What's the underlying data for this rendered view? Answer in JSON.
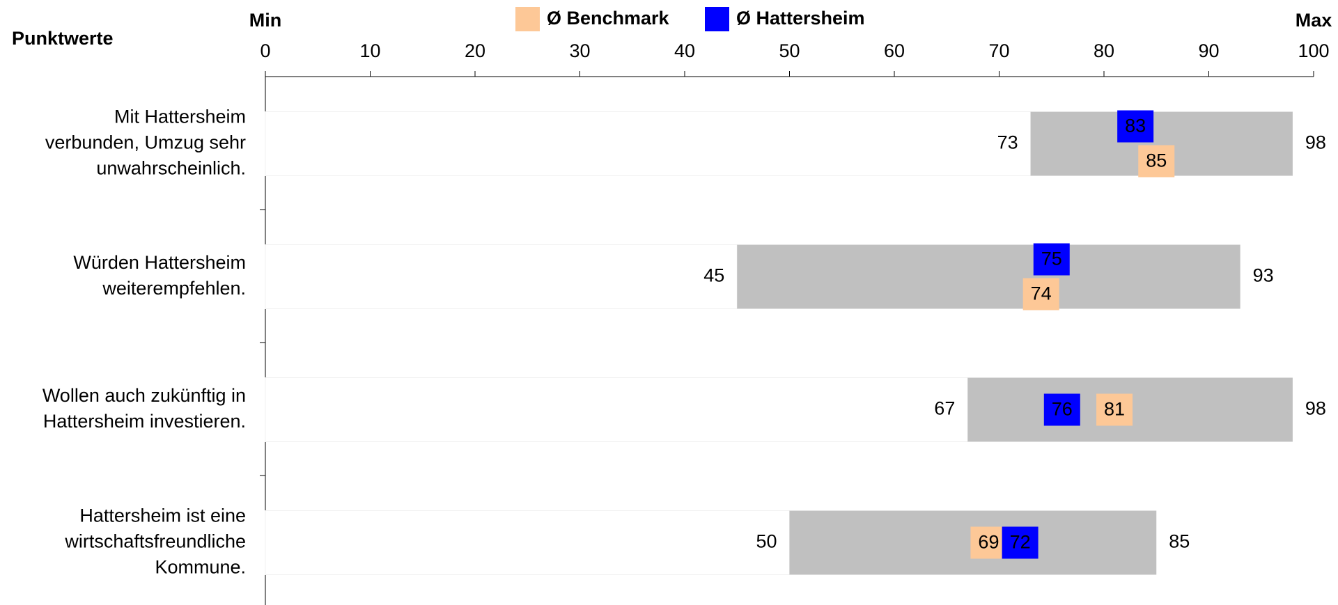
{
  "chart_data": {
    "type": "range",
    "y_label": "Punktwerte",
    "categories": [
      [
        "Mit Hattersheim",
        "verbunden, Umzug sehr",
        "unwahrscheinlich."
      ],
      [
        "Würden Hattersheim",
        "weiterempfehlen."
      ],
      [
        "Wollen auch zukünftig in",
        "Hattersheim investieren."
      ],
      [
        "Hattersheim ist eine",
        "wirtschaftsfreundliche",
        "Kommune."
      ]
    ],
    "range_color": "#c0c0c0",
    "range": [
      {
        "name": "Min",
        "values": [
          73,
          45,
          67,
          50
        ]
      },
      {
        "name": "Max",
        "values": [
          98,
          93,
          98,
          85
        ]
      }
    ],
    "series": [
      {
        "name": "Ø Benchmark",
        "color": "#fdc897",
        "text_color": "#000000",
        "values": [
          85,
          74,
          81,
          69
        ]
      },
      {
        "name": "Ø Hattersheim",
        "color": "#0000ff",
        "text_color": "#ffffff",
        "values": [
          83,
          75,
          76,
          72
        ]
      }
    ],
    "xlim": [
      0,
      100
    ],
    "xticks": [
      0,
      10,
      20,
      30,
      40,
      50,
      60,
      70,
      80,
      90,
      100
    ]
  }
}
